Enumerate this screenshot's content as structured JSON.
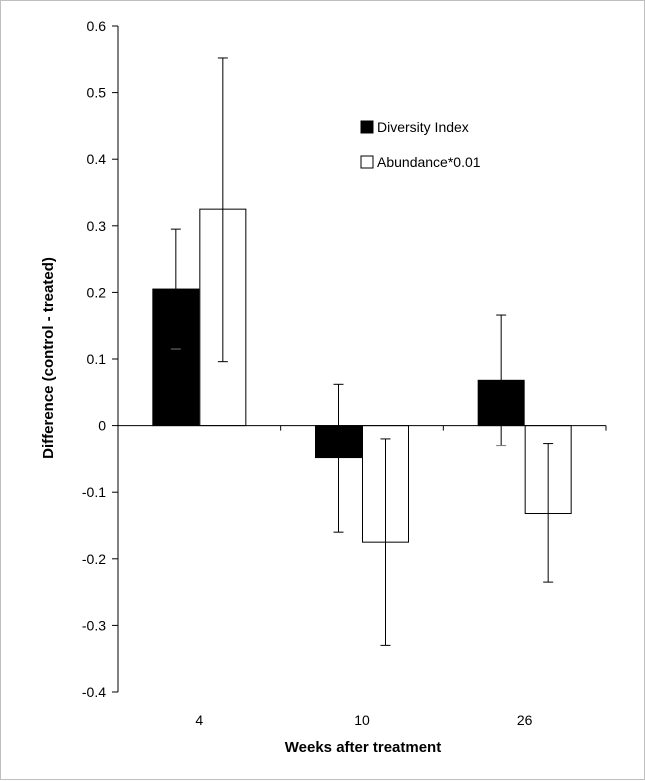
{
  "chart_data": {
    "type": "bar",
    "title": "",
    "xlabel": "Weeks after treatment",
    "ylabel": "Difference (control - treated)",
    "categories": [
      "4",
      "10",
      "26"
    ],
    "ylim": [
      -0.4,
      0.6
    ],
    "yticks": [
      "0.6",
      "0.5",
      "0.4",
      "0.3",
      "0.2",
      "0.1",
      "0",
      "-0.1",
      "-0.2",
      "-0.3",
      "-0.4"
    ],
    "ytick_values": [
      0.6,
      0.5,
      0.4,
      0.3,
      0.2,
      0.1,
      0,
      -0.1,
      -0.2,
      -0.3,
      -0.4
    ],
    "grid": false,
    "legend_position": "top-right",
    "series": [
      {
        "name": "Diversity Index",
        "color": "#000000",
        "values": [
          0.205,
          -0.048,
          0.068
        ],
        "error_low": [
          0.115,
          -0.16,
          -0.03
        ],
        "error_high": [
          0.295,
          0.062,
          0.166
        ]
      },
      {
        "name": "Abundance*0.01",
        "color": "#ffffff",
        "values": [
          0.325,
          -0.175,
          -0.132
        ],
        "error_low": [
          0.096,
          -0.33,
          -0.235
        ],
        "error_high": [
          0.552,
          -0.02,
          -0.027
        ]
      }
    ]
  }
}
